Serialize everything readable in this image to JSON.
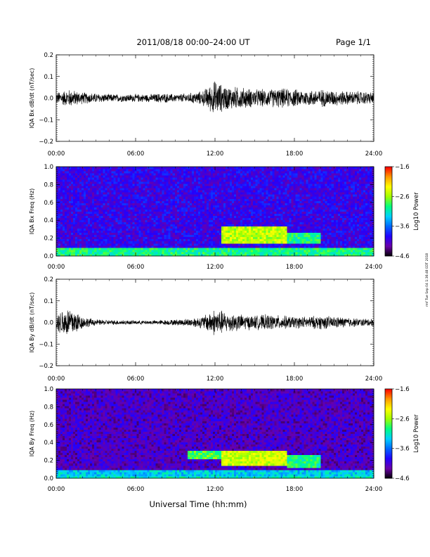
{
  "header": {
    "title": "2011/08/18  00:00–24:00 UT",
    "page": "Page 1/1"
  },
  "stamp": "rmf Tue Sep 04 1:36:48 EDT 2018",
  "x_axis_label": "Universal Time (hh:mm)",
  "x_ticks": [
    "00:00",
    "06:00",
    "12:00",
    "18:00",
    "24:00"
  ],
  "chart_data": [
    {
      "type": "line",
      "ylabel": "IQA Bx dB/dt (nT/sec)",
      "xlim": [
        0,
        24
      ],
      "ylim": [
        -0.2,
        0.2
      ],
      "y_ticks": [
        "0.2",
        "0.1",
        "0.0",
        "−0.1",
        "−0.2"
      ],
      "envelope_hours": [
        0,
        1,
        2,
        3,
        4,
        5,
        6,
        7,
        8,
        9,
        10,
        11,
        11.5,
        12,
        12.5,
        13,
        14,
        15,
        16,
        17,
        18,
        19,
        20,
        21,
        22,
        23,
        24
      ],
      "envelope_amplitude": [
        0.03,
        0.045,
        0.03,
        0.025,
        0.02,
        0.02,
        0.02,
        0.02,
        0.025,
        0.02,
        0.025,
        0.035,
        0.06,
        0.09,
        0.07,
        0.06,
        0.055,
        0.045,
        0.045,
        0.05,
        0.045,
        0.04,
        0.045,
        0.04,
        0.035,
        0.035,
        0.03
      ]
    },
    {
      "type": "heatmap",
      "ylabel": "IQA Bx Freq (Hz)",
      "xlim": [
        0,
        24
      ],
      "ylim": [
        0,
        1.0
      ],
      "y_ticks": [
        "1.0",
        "0.8",
        "0.6",
        "0.4",
        "0.2",
        "0.0"
      ],
      "colorbar_label": "Log10 Power",
      "colorbar_ticks": [
        "−1.6",
        "−2.6",
        "−3.6",
        "−4.6"
      ],
      "colorbar_range": [
        -4.6,
        -1.6
      ],
      "colorscale": [
        "#000000",
        "#6a00a8",
        "#2200ff",
        "#0066ff",
        "#00d0ff",
        "#00ff80",
        "#a0ff00",
        "#ffff00",
        "#ff9900",
        "#ff0000"
      ],
      "features": [
        {
          "label": "background",
          "level": 0.2
        },
        {
          "label": "low-frequency band 0-0.1 Hz",
          "t": [
            0,
            24
          ],
          "f": [
            0,
            0.1
          ],
          "level": 0.55
        },
        {
          "label": "Pc1 band",
          "t": [
            12.5,
            17.5
          ],
          "f": [
            0.15,
            0.33
          ],
          "level": 0.7
        },
        {
          "label": "Pc1 band",
          "t": [
            17.5,
            20
          ],
          "f": [
            0.15,
            0.25
          ],
          "level": 0.55
        }
      ]
    },
    {
      "type": "line",
      "ylabel": "IQA By dB/dt (nT/sec)",
      "xlim": [
        0,
        24
      ],
      "ylim": [
        -0.2,
        0.2
      ],
      "y_ticks": [
        "0.2",
        "0.1",
        "0.0",
        "−0.1",
        "−0.2"
      ],
      "envelope_hours": [
        0,
        0.5,
        1,
        1.5,
        2,
        3,
        4,
        5,
        6,
        7,
        8,
        9,
        10,
        11,
        11.5,
        12,
        12.5,
        13,
        14,
        15,
        16,
        17,
        18,
        19,
        20,
        21,
        22,
        23,
        24
      ],
      "envelope_amplitude": [
        0.04,
        0.07,
        0.08,
        0.06,
        0.03,
        0.015,
        0.012,
        0.012,
        0.01,
        0.01,
        0.012,
        0.015,
        0.02,
        0.03,
        0.05,
        0.07,
        0.06,
        0.05,
        0.04,
        0.035,
        0.04,
        0.035,
        0.03,
        0.03,
        0.035,
        0.03,
        0.025,
        0.02,
        0.02
      ]
    },
    {
      "type": "heatmap",
      "ylabel": "IQA By Freq (Hz)",
      "xlim": [
        0,
        24
      ],
      "ylim": [
        0,
        1.0
      ],
      "y_ticks": [
        "1.0",
        "0.8",
        "0.6",
        "0.4",
        "0.2",
        "0.0"
      ],
      "colorbar_label": "Log10 Power",
      "colorbar_ticks": [
        "−1.6",
        "−2.6",
        "−3.6",
        "−4.6"
      ],
      "colorbar_range": [
        -4.6,
        -1.6
      ],
      "colorscale": [
        "#000000",
        "#6a00a8",
        "#2200ff",
        "#0066ff",
        "#00d0ff",
        "#00ff80",
        "#a0ff00",
        "#ffff00",
        "#ff9900",
        "#ff0000"
      ],
      "features": [
        {
          "label": "background",
          "level": 0.15
        },
        {
          "label": "low-frequency band 0-0.1 Hz",
          "t": [
            0,
            24
          ],
          "f": [
            0,
            0.1
          ],
          "level": 0.45
        },
        {
          "label": "Pc1 band",
          "t": [
            10,
            13
          ],
          "f": [
            0.22,
            0.3
          ],
          "level": 0.6
        },
        {
          "label": "Pc1 band",
          "t": [
            12.5,
            17.5
          ],
          "f": [
            0.15,
            0.3
          ],
          "level": 0.72
        },
        {
          "label": "Pc1 band",
          "t": [
            17.5,
            20
          ],
          "f": [
            0.12,
            0.25
          ],
          "level": 0.55
        }
      ]
    }
  ]
}
